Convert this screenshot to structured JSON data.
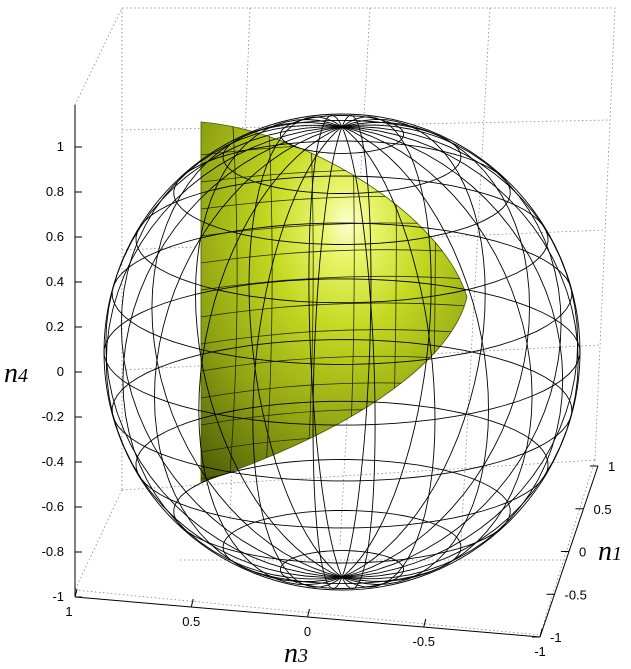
{
  "chart_data": {
    "type": "3d-surface",
    "title": "",
    "grid": "dotted",
    "axes": {
      "n4": {
        "label": "n",
        "subscript": "4",
        "range": [
          -1,
          1
        ],
        "ticks": [
          "-1",
          "-0.8",
          "-0.6",
          "-0.4",
          "-0.2",
          "0",
          "0.2",
          "0.4",
          "0.6",
          "0.8",
          "1"
        ]
      },
      "n3": {
        "label": "n",
        "subscript": "3",
        "range": [
          -1,
          1
        ],
        "ticks": [
          "1",
          "0.5",
          "0",
          "-0.5",
          "-1"
        ]
      },
      "n1": {
        "label": "n",
        "subscript": "1",
        "range": [
          -1,
          1
        ],
        "ticks": [
          "1",
          "0.5",
          "0",
          "-0.5",
          "-1"
        ]
      }
    },
    "surfaces": [
      {
        "kind": "wireframe-sphere",
        "radius": 1,
        "color": "#000000"
      },
      {
        "kind": "shaded-cap",
        "color": "#c8dc1e"
      }
    ]
  }
}
